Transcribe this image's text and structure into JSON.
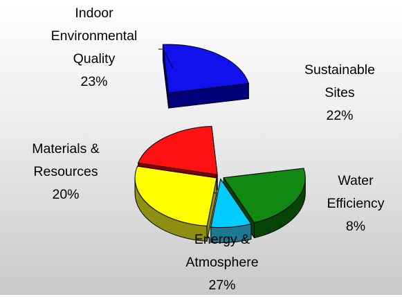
{
  "chart_data": {
    "type": "pie",
    "title": "",
    "slices": [
      {
        "name": "Indoor Environmental Quality",
        "label_lines": [
          "Indoor",
          "Environmental",
          "Quality"
        ],
        "pct_label": "23%",
        "value": 23,
        "color": "#1111ee",
        "side": "#00007a",
        "exploded": true
      },
      {
        "name": "Sustainable Sites",
        "label_lines": [
          "Sustainable",
          "Sites"
        ],
        "pct_label": "22%",
        "value": 22,
        "color": "#118811",
        "side": "#064406",
        "exploded": false
      },
      {
        "name": "Water Efficiency",
        "label_lines": [
          "Water",
          "Efficiency"
        ],
        "pct_label": "8%",
        "value": 8,
        "color": "#00ccff",
        "side": "#1f7892",
        "exploded": false
      },
      {
        "name": "Energy & Atmosphere",
        "label_lines": [
          "Energy &",
          "Atmosphere"
        ],
        "pct_label": "27%",
        "value": 27,
        "color": "#ffff00",
        "side": "#8e8e10",
        "exploded": false
      },
      {
        "name": "Materials & Resources",
        "label_lines": [
          "Materials &",
          "Resources"
        ],
        "pct_label": "20%",
        "value": 20,
        "color": "#ff1111",
        "side": "#860000",
        "exploded": false
      }
    ],
    "legend": "none",
    "style": "3d-exploded"
  }
}
